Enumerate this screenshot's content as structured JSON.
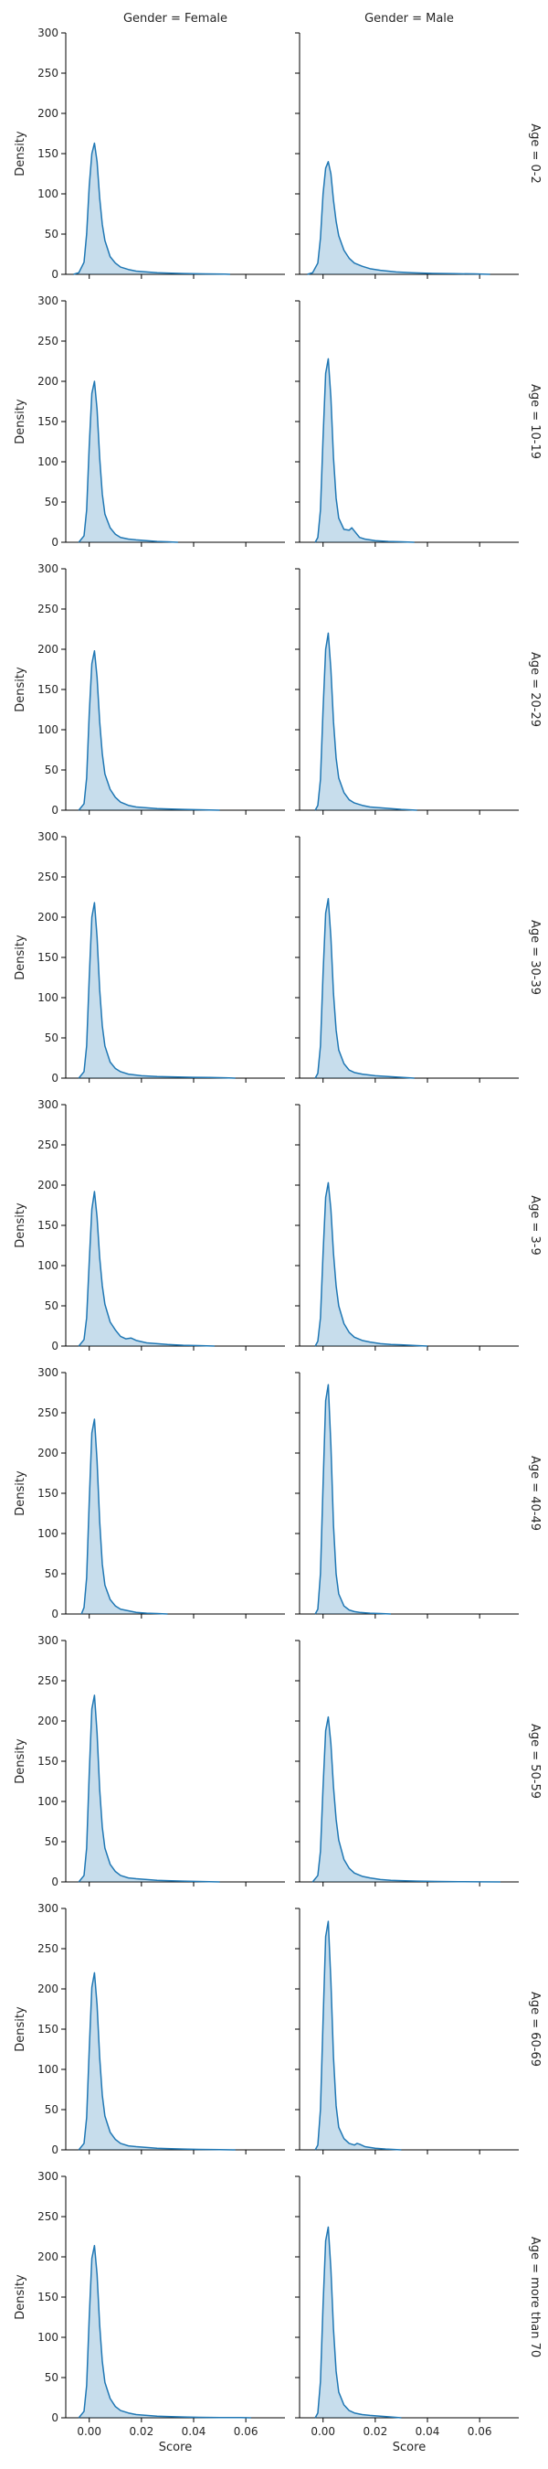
{
  "chart_data": {
    "type": "area",
    "kind": "kde-facet-grid",
    "xlabel": "Score",
    "ylabel": "Density",
    "xlim": [
      -0.009,
      0.075
    ],
    "ylim": [
      0,
      300
    ],
    "xticks": [
      0.0,
      0.02,
      0.04,
      0.06
    ],
    "xtick_labels": [
      "0.00",
      "0.02",
      "0.04",
      "0.06"
    ],
    "yticks": [
      0,
      50,
      100,
      150,
      200,
      250,
      300
    ],
    "col_titles": [
      "Gender = Female",
      "Gender = Male"
    ],
    "row_titles": [
      "Age = 0-2",
      "Age = 10-19",
      "Age = 20-29",
      "Age = 30-39",
      "Age = 3-9",
      "Age = 40-49",
      "Age = 50-59",
      "Age = 60-69",
      "Age = more than 70"
    ],
    "line_color": "#1f77b4",
    "fill_color": "#1f77b4",
    "fill_opacity": 0.25,
    "panels": [
      {
        "row": 0,
        "col": 0,
        "series": [
          {
            "name": "",
            "x": [
              -0.006,
              -0.004,
              -0.002,
              -0.001,
              0.0,
              0.001,
              0.002,
              0.003,
              0.004,
              0.005,
              0.006,
              0.008,
              0.01,
              0.012,
              0.015,
              0.018,
              0.022,
              0.026,
              0.03,
              0.036,
              0.044,
              0.052,
              0.054
            ],
            "y": [
              0,
              2,
              15,
              50,
              110,
              150,
              163,
              140,
              95,
              62,
              42,
              22,
              14,
              9,
              6,
              4,
              3,
              2,
              1.5,
              1,
              0.6,
              0.3,
              0
            ]
          }
        ]
      },
      {
        "row": 0,
        "col": 1,
        "series": [
          {
            "name": "",
            "x": [
              -0.006,
              -0.004,
              -0.002,
              -0.001,
              0.0,
              0.001,
              0.002,
              0.003,
              0.004,
              0.005,
              0.006,
              0.008,
              0.01,
              0.012,
              0.015,
              0.018,
              0.022,
              0.028,
              0.034,
              0.042,
              0.05,
              0.058,
              0.064
            ],
            "y": [
              0,
              2,
              14,
              45,
              100,
              132,
              140,
              125,
              92,
              66,
              48,
              30,
              20,
              14,
              10,
              7,
              5,
              3,
              2,
              1.2,
              0.8,
              0.5,
              0
            ]
          }
        ]
      },
      {
        "row": 1,
        "col": 0,
        "series": [
          {
            "name": "",
            "x": [
              -0.004,
              -0.002,
              -0.001,
              0.0,
              0.001,
              0.002,
              0.003,
              0.004,
              0.005,
              0.006,
              0.008,
              0.01,
              0.012,
              0.015,
              0.018,
              0.022,
              0.026,
              0.03,
              0.034
            ],
            "y": [
              0,
              8,
              40,
              120,
              185,
              200,
              165,
              105,
              60,
              35,
              18,
              10,
              6,
              4,
              3,
              2,
              1,
              0.5,
              0
            ]
          }
        ]
      },
      {
        "row": 1,
        "col": 1,
        "series": [
          {
            "name": "",
            "x": [
              -0.003,
              -0.002,
              -0.001,
              0.0,
              0.001,
              0.002,
              0.003,
              0.004,
              0.005,
              0.006,
              0.008,
              0.01,
              0.011,
              0.012,
              0.014,
              0.016,
              0.02,
              0.025,
              0.03,
              0.035
            ],
            "y": [
              0,
              6,
              40,
              130,
              210,
              228,
              180,
              105,
              55,
              30,
              16,
              15,
              18,
              14,
              6,
              4,
              2,
              1,
              0.5,
              0
            ]
          }
        ]
      },
      {
        "row": 2,
        "col": 0,
        "series": [
          {
            "name": "",
            "x": [
              -0.004,
              -0.002,
              -0.001,
              0.0,
              0.001,
              0.002,
              0.003,
              0.004,
              0.005,
              0.006,
              0.008,
              0.01,
              0.012,
              0.015,
              0.018,
              0.022,
              0.026,
              0.03,
              0.036,
              0.042,
              0.05
            ],
            "y": [
              0,
              8,
              40,
              120,
              182,
              198,
              165,
              110,
              70,
              45,
              26,
              16,
              10,
              6,
              4,
              3,
              2,
              1.5,
              1,
              0.5,
              0
            ]
          }
        ]
      },
      {
        "row": 2,
        "col": 1,
        "series": [
          {
            "name": "",
            "x": [
              -0.003,
              -0.002,
              -0.001,
              0.0,
              0.001,
              0.002,
              0.003,
              0.004,
              0.005,
              0.006,
              0.008,
              0.01,
              0.012,
              0.015,
              0.018,
              0.022,
              0.026,
              0.03,
              0.036
            ],
            "y": [
              0,
              6,
              38,
              125,
              200,
              220,
              175,
              110,
              65,
              40,
              22,
              13,
              9,
              6,
              4,
              3,
              2,
              1,
              0
            ]
          }
        ]
      },
      {
        "row": 3,
        "col": 0,
        "series": [
          {
            "name": "",
            "x": [
              -0.004,
              -0.002,
              -0.001,
              0.0,
              0.001,
              0.002,
              0.003,
              0.004,
              0.005,
              0.006,
              0.008,
              0.01,
              0.012,
              0.015,
              0.02,
              0.026,
              0.032,
              0.04,
              0.046,
              0.052,
              0.056
            ],
            "y": [
              0,
              8,
              40,
              125,
              200,
              218,
              175,
              110,
              65,
              40,
              20,
              12,
              8,
              5,
              3,
              2,
              1.5,
              1,
              0.8,
              0.4,
              0
            ]
          }
        ]
      },
      {
        "row": 3,
        "col": 1,
        "series": [
          {
            "name": "",
            "x": [
              -0.003,
              -0.002,
              -0.001,
              0.0,
              0.001,
              0.002,
              0.003,
              0.004,
              0.005,
              0.006,
              0.008,
              0.01,
              0.012,
              0.015,
              0.02,
              0.025,
              0.03,
              0.035
            ],
            "y": [
              0,
              6,
              40,
              130,
              205,
              223,
              175,
              105,
              60,
              35,
              18,
              10,
              7,
              5,
              3,
              2,
              1,
              0
            ]
          }
        ]
      },
      {
        "row": 4,
        "col": 0,
        "series": [
          {
            "name": "",
            "x": [
              -0.004,
              -0.002,
              -0.001,
              0.0,
              0.001,
              0.002,
              0.003,
              0.004,
              0.005,
              0.006,
              0.008,
              0.01,
              0.012,
              0.014,
              0.016,
              0.018,
              0.022,
              0.026,
              0.03,
              0.036,
              0.042,
              0.048
            ],
            "y": [
              0,
              8,
              35,
              105,
              170,
              192,
              160,
              110,
              75,
              52,
              30,
              20,
              12,
              9,
              10,
              7,
              4,
              3,
              2,
              1,
              0.5,
              0
            ]
          }
        ]
      },
      {
        "row": 4,
        "col": 1,
        "series": [
          {
            "name": "",
            "x": [
              -0.003,
              -0.002,
              -0.001,
              0.0,
              0.001,
              0.002,
              0.003,
              0.004,
              0.005,
              0.006,
              0.008,
              0.01,
              0.012,
              0.015,
              0.018,
              0.022,
              0.026,
              0.03,
              0.036,
              0.04
            ],
            "y": [
              0,
              6,
              35,
              115,
              185,
              203,
              170,
              115,
              75,
              50,
              28,
              17,
              11,
              7,
              5,
              3,
              2,
              1.5,
              0.5,
              0
            ]
          }
        ]
      },
      {
        "row": 5,
        "col": 0,
        "series": [
          {
            "name": "",
            "x": [
              -0.003,
              -0.002,
              -0.001,
              0.0,
              0.001,
              0.002,
              0.003,
              0.004,
              0.005,
              0.006,
              0.008,
              0.01,
              0.012,
              0.015,
              0.018,
              0.022,
              0.026,
              0.03
            ],
            "y": [
              0,
              8,
              45,
              140,
              225,
              242,
              190,
              115,
              62,
              36,
              18,
              10,
              6,
              4,
              2,
              1,
              0.5,
              0
            ]
          }
        ]
      },
      {
        "row": 5,
        "col": 1,
        "series": [
          {
            "name": "",
            "x": [
              -0.003,
              -0.002,
              -0.001,
              0.0,
              0.001,
              0.002,
              0.003,
              0.004,
              0.005,
              0.006,
              0.008,
              0.01,
              0.012,
              0.014,
              0.018,
              0.022,
              0.026
            ],
            "y": [
              0,
              6,
              50,
              160,
              265,
              285,
              210,
              110,
              50,
              25,
              10,
              5,
              3,
              2,
              1,
              0.5,
              0
            ]
          }
        ]
      },
      {
        "row": 6,
        "col": 0,
        "series": [
          {
            "name": "",
            "x": [
              -0.004,
              -0.002,
              -0.001,
              0.0,
              0.001,
              0.002,
              0.003,
              0.004,
              0.005,
              0.006,
              0.008,
              0.01,
              0.012,
              0.015,
              0.018,
              0.022,
              0.026,
              0.03,
              0.036,
              0.042,
              0.05
            ],
            "y": [
              0,
              8,
              42,
              135,
              215,
              232,
              185,
              115,
              68,
              42,
              22,
              13,
              8,
              5,
              4,
              3,
              2,
              1.5,
              1,
              0.5,
              0
            ]
          }
        ]
      },
      {
        "row": 6,
        "col": 1,
        "series": [
          {
            "name": "",
            "x": [
              -0.004,
              -0.002,
              -0.001,
              0.0,
              0.001,
              0.002,
              0.003,
              0.004,
              0.005,
              0.006,
              0.008,
              0.01,
              0.012,
              0.015,
              0.018,
              0.022,
              0.026,
              0.03,
              0.036,
              0.044,
              0.052,
              0.06,
              0.068
            ],
            "y": [
              0,
              8,
              38,
              118,
              188,
              205,
              172,
              118,
              78,
              52,
              28,
              17,
              11,
              7,
              5,
              3,
              2,
              1.5,
              1,
              0.6,
              0.3,
              0.2,
              0
            ]
          }
        ]
      },
      {
        "row": 7,
        "col": 0,
        "series": [
          {
            "name": "",
            "x": [
              -0.004,
              -0.002,
              -0.001,
              0.0,
              0.001,
              0.002,
              0.003,
              0.004,
              0.005,
              0.006,
              0.008,
              0.01,
              0.012,
              0.015,
              0.018,
              0.022,
              0.026,
              0.03,
              0.036,
              0.042,
              0.05,
              0.056
            ],
            "y": [
              0,
              8,
              40,
              125,
              202,
              220,
              180,
              115,
              68,
              42,
              22,
              13,
              8,
              5,
              4,
              3,
              2,
              1.5,
              1,
              0.6,
              0.3,
              0
            ]
          }
        ]
      },
      {
        "row": 7,
        "col": 1,
        "series": [
          {
            "name": "",
            "x": [
              -0.003,
              -0.002,
              -0.001,
              0.0,
              0.001,
              0.002,
              0.003,
              0.004,
              0.005,
              0.006,
              0.008,
              0.01,
              0.012,
              0.013,
              0.014,
              0.016,
              0.02,
              0.024,
              0.03
            ],
            "y": [
              0,
              6,
              50,
              160,
              265,
              284,
              210,
              115,
              55,
              28,
              14,
              8,
              6,
              8,
              7,
              4,
              2,
              1,
              0
            ]
          }
        ]
      },
      {
        "row": 8,
        "col": 0,
        "series": [
          {
            "name": "",
            "x": [
              -0.004,
              -0.002,
              -0.001,
              0.0,
              0.001,
              0.002,
              0.003,
              0.004,
              0.005,
              0.006,
              0.008,
              0.01,
              0.012,
              0.015,
              0.018,
              0.022,
              0.026,
              0.03,
              0.036,
              0.042,
              0.05,
              0.058,
              0.062
            ],
            "y": [
              0,
              8,
              40,
              125,
              198,
              214,
              178,
              115,
              70,
              44,
              24,
              14,
              9,
              6,
              4,
              3,
              2,
              1.5,
              1,
              0.6,
              0.3,
              0.3,
              0
            ]
          }
        ]
      },
      {
        "row": 8,
        "col": 1,
        "series": [
          {
            "name": "",
            "x": [
              -0.003,
              -0.002,
              -0.001,
              0.0,
              0.001,
              0.002,
              0.003,
              0.004,
              0.005,
              0.006,
              0.008,
              0.01,
              0.012,
              0.015,
              0.018,
              0.022,
              0.026,
              0.03
            ],
            "y": [
              0,
              6,
              45,
              140,
              220,
              237,
              185,
              110,
              58,
              32,
              16,
              9,
              6,
              4,
              3,
              2,
              1,
              0
            ]
          }
        ]
      }
    ]
  }
}
